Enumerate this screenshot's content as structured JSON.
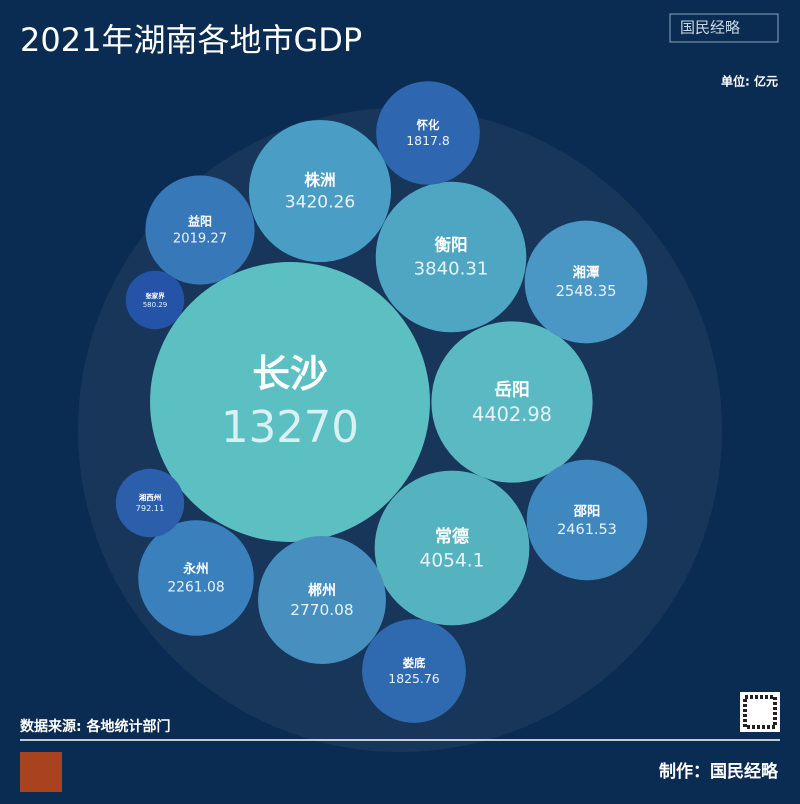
{
  "chart_data": {
    "type": "bubble",
    "title": "2021年湖南各地市GDP",
    "unit": "单位: 亿元",
    "source": "数据来源: 各地统计部门",
    "credit": "制作：国民经略",
    "logo": "国民经略",
    "categories": [
      "长沙",
      "岳阳",
      "常德",
      "衡阳",
      "株洲",
      "郴州",
      "湘潭",
      "邵阳",
      "永州",
      "益阳",
      "娄底",
      "怀化",
      "湘西州",
      "张家界"
    ],
    "values": [
      13270,
      4402.98,
      4054.1,
      3840.31,
      3420.26,
      2770.08,
      2548.35,
      2461.53,
      2261.08,
      2019.27,
      1825.76,
      1817.8,
      792.11,
      580.29
    ],
    "colors": [
      "#5cc0c2",
      "#5bb9c4",
      "#55b3c0",
      "#4ea6c2",
      "#4a9dc4",
      "#478fbf",
      "#4a96c4",
      "#3e87bf",
      "#3a80bc",
      "#3778b8",
      "#2f69b0",
      "#2e67b0",
      "#2b5eab",
      "#2453a8"
    ]
  }
}
